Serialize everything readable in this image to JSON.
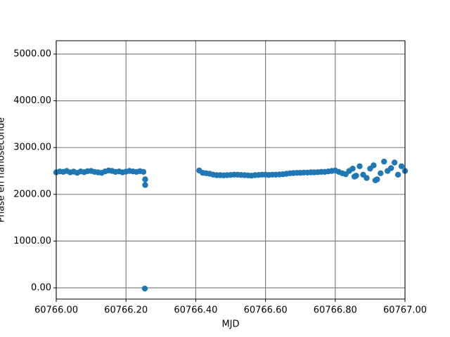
{
  "chart_data": {
    "type": "scatter",
    "x_label": "MJD",
    "y_label": "Phase en nanoseconde",
    "color": "#1f77b4",
    "grid": true,
    "xlim": [
      60766.0,
      60767.0
    ],
    "ylim": [
      -240,
      5285
    ],
    "xticks": [
      {
        "value": 60766.0,
        "label": "60766.00"
      },
      {
        "value": 60766.2,
        "label": "60766.20"
      },
      {
        "value": 60766.4,
        "label": "60766.40"
      },
      {
        "value": 60766.6,
        "label": "60766.60"
      },
      {
        "value": 60766.8,
        "label": "60766.80"
      },
      {
        "value": 60767.0,
        "label": "60767.00"
      }
    ],
    "yticks": [
      {
        "value": 0,
        "label": "0.00"
      },
      {
        "value": 1000,
        "label": "1000.00"
      },
      {
        "value": 2000,
        "label": "2000.00"
      },
      {
        "value": 3000,
        "label": "3000.00"
      },
      {
        "value": 4000,
        "label": "4000.00"
      },
      {
        "value": 5000,
        "label": "5000.00"
      }
    ],
    "x": [
      60766.0,
      60766.01,
      60766.02,
      60766.03,
      60766.04,
      60766.05,
      60766.06,
      60766.07,
      60766.08,
      60766.09,
      60766.1,
      60766.11,
      60766.12,
      60766.13,
      60766.14,
      60766.15,
      60766.16,
      60766.17,
      60766.18,
      60766.19,
      60766.2,
      60766.21,
      60766.22,
      60766.23,
      60766.24,
      60766.25,
      60766.255,
      60766.255,
      60766.254,
      60766.41,
      60766.42,
      60766.43,
      60766.44,
      60766.45,
      60766.46,
      60766.47,
      60766.48,
      60766.49,
      60766.5,
      60766.51,
      60766.52,
      60766.53,
      60766.54,
      60766.55,
      60766.56,
      60766.57,
      60766.58,
      60766.59,
      60766.6,
      60766.61,
      60766.62,
      60766.63,
      60766.64,
      60766.65,
      60766.66,
      60766.67,
      60766.68,
      60766.69,
      60766.7,
      60766.71,
      60766.72,
      60766.73,
      60766.74,
      60766.75,
      60766.76,
      60766.77,
      60766.78,
      60766.79,
      60766.8,
      60766.81,
      60766.82,
      60766.83,
      60766.84,
      60766.85,
      60766.855,
      60766.86,
      60766.87,
      60766.88,
      60766.89,
      60766.9,
      60766.91,
      60766.915,
      60766.92,
      60766.93,
      60766.94,
      60766.95,
      60766.96,
      60766.97,
      60766.98,
      60766.99,
      60767.0
    ],
    "values": [
      2470,
      2490,
      2480,
      2500,
      2470,
      2485,
      2460,
      2490,
      2475,
      2495,
      2500,
      2480,
      2470,
      2460,
      2490,
      2510,
      2500,
      2480,
      2490,
      2470,
      2485,
      2500,
      2490,
      2480,
      2495,
      2480,
      2320,
      2200,
      -15,
      2510,
      2460,
      2450,
      2440,
      2420,
      2410,
      2410,
      2405,
      2410,
      2415,
      2420,
      2420,
      2415,
      2410,
      2405,
      2400,
      2410,
      2415,
      2420,
      2420,
      2415,
      2420,
      2420,
      2425,
      2430,
      2440,
      2450,
      2455,
      2460,
      2460,
      2465,
      2465,
      2470,
      2470,
      2475,
      2480,
      2480,
      2490,
      2500,
      2510,
      2480,
      2450,
      2430,
      2500,
      2550,
      2380,
      2400,
      2600,
      2420,
      2350,
      2550,
      2620,
      2300,
      2320,
      2450,
      2700,
      2500,
      2560,
      2680,
      2420,
      2600,
      2500
    ]
  }
}
